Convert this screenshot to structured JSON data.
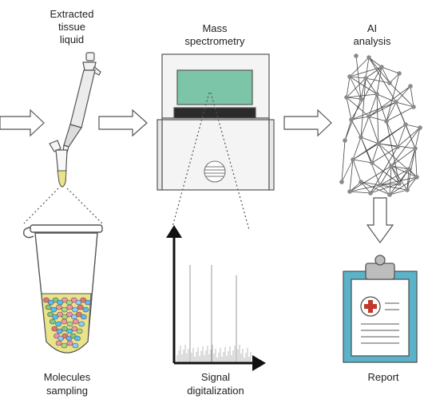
{
  "labels": {
    "extracted": [
      "Extracted",
      "tissue",
      "liquid"
    ],
    "mass": [
      "Mass",
      "spectrometry"
    ],
    "ai": [
      "AI",
      "analysis"
    ],
    "molecules": [
      "Molecules",
      "sampling"
    ],
    "signal": [
      "Signal",
      "digitalization"
    ],
    "report": [
      "Report"
    ]
  },
  "colors": {
    "line": "#3a3a3a",
    "screen": "#7cc5a8",
    "node": "#8a8a8a",
    "clipboard": "#5bb3c9",
    "cross": "#c0392b",
    "liquid": "#e9e48a"
  },
  "icons": {
    "arrow": "outline-right-arrow-icon",
    "pipette": "pipette-icon",
    "spectrometer": "mass-spectrometer-icon",
    "network": "neural-network-icon",
    "tube": "sample-tube-icon",
    "spectrum": "signal-spectrum-icon",
    "report": "clipboard-report-icon"
  }
}
